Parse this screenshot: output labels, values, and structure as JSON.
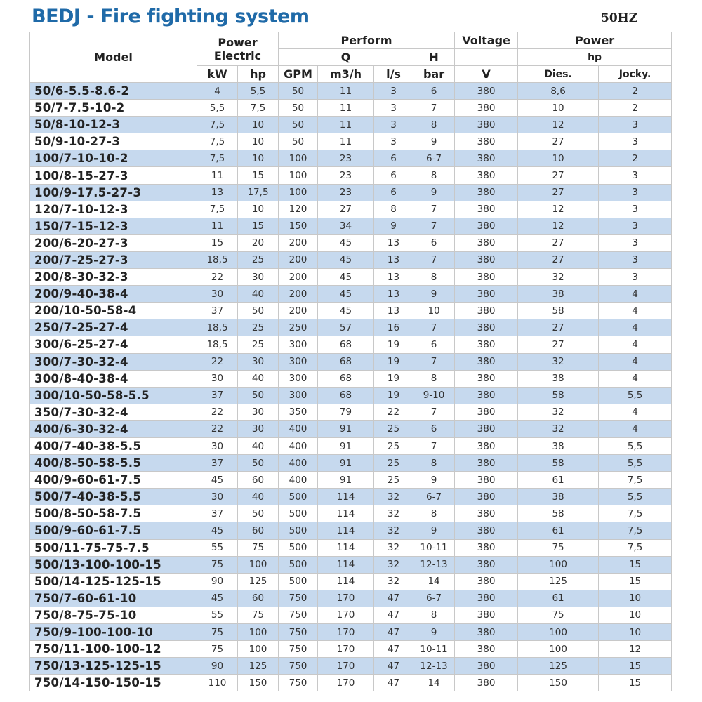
{
  "title": "BEDJ - Fire fighting system",
  "frequency": "50HZ",
  "header": {
    "model": "Model",
    "power_electric": "Power\nElectric",
    "power_electric_l1": "Power",
    "power_electric_l2": "Electric",
    "perform": "Perform",
    "q": "Q",
    "h": "H",
    "voltage": "Voltage",
    "power": "Power",
    "hp": "hp",
    "units": [
      "kW",
      "hp",
      "GPM",
      "m3/h",
      "l/s",
      "bar",
      "V",
      "Dies.",
      "Jocky."
    ]
  },
  "rows": [
    [
      "50/6-5.5-8.6-2",
      "4",
      "5,5",
      "50",
      "11",
      "3",
      "6",
      "380",
      "8,6",
      "2"
    ],
    [
      "50/7-7.5-10-2",
      "5,5",
      "7,5",
      "50",
      "11",
      "3",
      "7",
      "380",
      "10",
      "2"
    ],
    [
      "50/8-10-12-3",
      "7,5",
      "10",
      "50",
      "11",
      "3",
      "8",
      "380",
      "12",
      "3"
    ],
    [
      "50/9-10-27-3",
      "7,5",
      "10",
      "50",
      "11",
      "3",
      "9",
      "380",
      "27",
      "3"
    ],
    [
      "100/7-10-10-2",
      "7,5",
      "10",
      "100",
      "23",
      "6",
      "6-7",
      "380",
      "10",
      "2"
    ],
    [
      "100/8-15-27-3",
      "11",
      "15",
      "100",
      "23",
      "6",
      "8",
      "380",
      "27",
      "3"
    ],
    [
      "100/9-17.5-27-3",
      "13",
      "17,5",
      "100",
      "23",
      "6",
      "9",
      "380",
      "27",
      "3"
    ],
    [
      "120/7-10-12-3",
      "7,5",
      "10",
      "120",
      "27",
      "8",
      "7",
      "380",
      "12",
      "3"
    ],
    [
      "150/7-15-12-3",
      "11",
      "15",
      "150",
      "34",
      "9",
      "7",
      "380",
      "12",
      "3"
    ],
    [
      "200/6-20-27-3",
      "15",
      "20",
      "200",
      "45",
      "13",
      "6",
      "380",
      "27",
      "3"
    ],
    [
      "200/7-25-27-3",
      "18,5",
      "25",
      "200",
      "45",
      "13",
      "7",
      "380",
      "27",
      "3"
    ],
    [
      "200/8-30-32-3",
      "22",
      "30",
      "200",
      "45",
      "13",
      "8",
      "380",
      "32",
      "3"
    ],
    [
      "200/9-40-38-4",
      "30",
      "40",
      "200",
      "45",
      "13",
      "9",
      "380",
      "38",
      "4"
    ],
    [
      "200/10-50-58-4",
      "37",
      "50",
      "200",
      "45",
      "13",
      "10",
      "380",
      "58",
      "4"
    ],
    [
      "250/7-25-27-4",
      "18,5",
      "25",
      "250",
      "57",
      "16",
      "7",
      "380",
      "27",
      "4"
    ],
    [
      "300/6-25-27-4",
      "18,5",
      "25",
      "300",
      "68",
      "19",
      "6",
      "380",
      "27",
      "4"
    ],
    [
      "300/7-30-32-4",
      "22",
      "30",
      "300",
      "68",
      "19",
      "7",
      "380",
      "32",
      "4"
    ],
    [
      "300/8-40-38-4",
      "30",
      "40",
      "300",
      "68",
      "19",
      "8",
      "380",
      "38",
      "4"
    ],
    [
      "300/10-50-58-5.5",
      "37",
      "50",
      "300",
      "68",
      "19",
      "9-10",
      "380",
      "58",
      "5,5"
    ],
    [
      "350/7-30-32-4",
      "22",
      "30",
      "350",
      "79",
      "22",
      "7",
      "380",
      "32",
      "4"
    ],
    [
      "400/6-30-32-4",
      "22",
      "30",
      "400",
      "91",
      "25",
      "6",
      "380",
      "32",
      "4"
    ],
    [
      "400/7-40-38-5.5",
      "30",
      "40",
      "400",
      "91",
      "25",
      "7",
      "380",
      "38",
      "5,5"
    ],
    [
      "400/8-50-58-5.5",
      "37",
      "50",
      "400",
      "91",
      "25",
      "8",
      "380",
      "58",
      "5,5"
    ],
    [
      "400/9-60-61-7.5",
      "45",
      "60",
      "400",
      "91",
      "25",
      "9",
      "380",
      "61",
      "7,5"
    ],
    [
      "500/7-40-38-5.5",
      "30",
      "40",
      "500",
      "114",
      "32",
      "6-7",
      "380",
      "38",
      "5,5"
    ],
    [
      "500/8-50-58-7.5",
      "37",
      "50",
      "500",
      "114",
      "32",
      "8",
      "380",
      "58",
      "7,5"
    ],
    [
      "500/9-60-61-7.5",
      "45",
      "60",
      "500",
      "114",
      "32",
      "9",
      "380",
      "61",
      "7,5"
    ],
    [
      "500/11-75-75-7.5",
      "55",
      "75",
      "500",
      "114",
      "32",
      "10-11",
      "380",
      "75",
      "7,5"
    ],
    [
      "500/13-100-100-15",
      "75",
      "100",
      "500",
      "114",
      "32",
      "12-13",
      "380",
      "100",
      "15"
    ],
    [
      "500/14-125-125-15",
      "90",
      "125",
      "500",
      "114",
      "32",
      "14",
      "380",
      "125",
      "15"
    ],
    [
      "750/7-60-61-10",
      "45",
      "60",
      "750",
      "170",
      "47",
      "6-7",
      "380",
      "61",
      "10"
    ],
    [
      "750/8-75-75-10",
      "55",
      "75",
      "750",
      "170",
      "47",
      "8",
      "380",
      "75",
      "10"
    ],
    [
      "750/9-100-100-10",
      "75",
      "100",
      "750",
      "170",
      "47",
      "9",
      "380",
      "100",
      "10"
    ],
    [
      "750/11-100-100-12",
      "75",
      "100",
      "750",
      "170",
      "47",
      "10-11",
      "380",
      "100",
      "12"
    ],
    [
      "750/13-125-125-15",
      "90",
      "125",
      "750",
      "170",
      "47",
      "12-13",
      "380",
      "125",
      "15"
    ],
    [
      "750/14-150-150-15",
      "110",
      "150",
      "750",
      "170",
      "47",
      "14",
      "380",
      "150",
      "15"
    ]
  ],
  "colors": {
    "title": "#1f6aa8",
    "row_alt": "#c6d9ee"
  }
}
